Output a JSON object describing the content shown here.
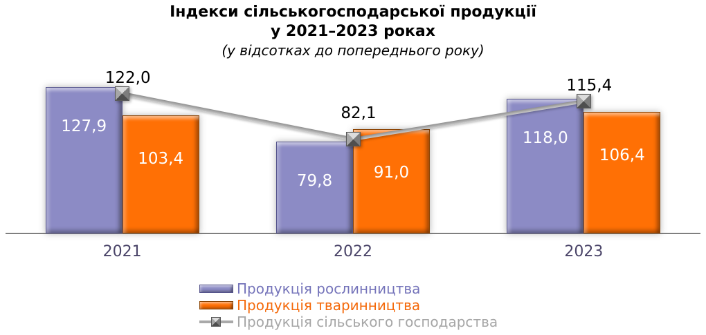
{
  "title": {
    "line1": "Індекси сільськогосподарської продукції",
    "line2": "у 2021–2023 роках",
    "subtitle": "(у відсотках до попереднього року)"
  },
  "chart_data": {
    "type": "bar+line combo",
    "categories": [
      "2021",
      "2022",
      "2023"
    ],
    "series": [
      {
        "key": "crop-production",
        "name": "Продукція рослинництва",
        "type": "bar",
        "values": [
          127.9,
          79.8,
          118.0
        ],
        "labels": [
          "127,9",
          "79,8",
          "118,0"
        ],
        "fill_color": "#8C8BC5",
        "edge_color": "#55548C",
        "legend_text_color": "#7574BA"
      },
      {
        "key": "animal-production",
        "name": "Продукція тваринництва",
        "type": "bar",
        "values": [
          103.4,
          91.0,
          106.4
        ],
        "labels": [
          "103,4",
          "91,0",
          "106,4"
        ],
        "fill_color": "#FF7005",
        "edge_color": "#8C4403",
        "legend_text_color": "#F4690A"
      },
      {
        "key": "agriculture-total",
        "name": "Продукція сільського господарства",
        "type": "line",
        "values": [
          122.0,
          82.1,
          115.4
        ],
        "labels": [
          "122,0",
          "82,1",
          "115,4"
        ],
        "fill_color": "#A9A9A9",
        "edge_color": "#8E8E8E",
        "legend_text_color": "#A6A6A6"
      }
    ],
    "ylim": [
      0,
      145
    ],
    "grid": false,
    "legend_position": "bottom",
    "bar_label_color": "#FFFFFF",
    "line_label_color": "#000000",
    "axis_label_color": "#4A4468",
    "axis_line_color": "#7F7F7F"
  }
}
